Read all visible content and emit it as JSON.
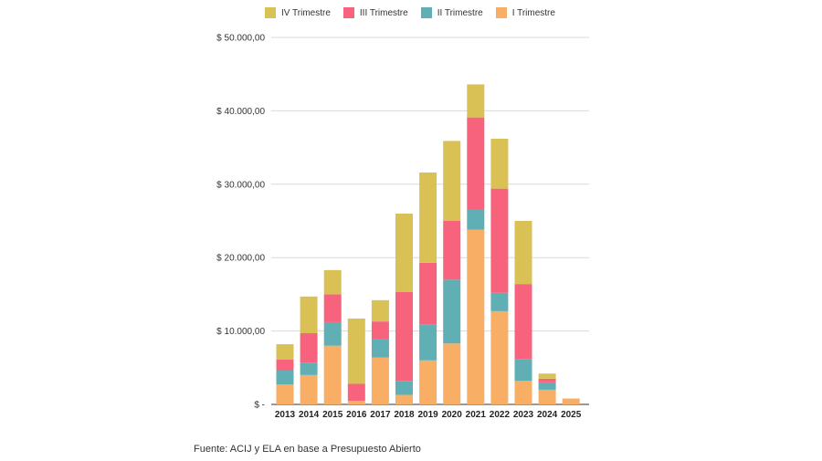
{
  "chart_data": {
    "type": "bar",
    "stacked": true,
    "title": "",
    "xlabel": "",
    "ylabel": "",
    "ylim": [
      0,
      50000
    ],
    "yticks": [
      {
        "value": 0,
        "label": "$ -"
      },
      {
        "value": 10000,
        "label": "$ 10.000,00"
      },
      {
        "value": 20000,
        "label": "$ 20.000,00"
      },
      {
        "value": 30000,
        "label": "$ 30.000,00"
      },
      {
        "value": 40000,
        "label": "$ 40.000,00"
      },
      {
        "value": 50000,
        "label": "$ 50.000,00"
      }
    ],
    "grid": true,
    "legend_position": "top",
    "categories": [
      "2013",
      "2014",
      "2015",
      "2016",
      "2017",
      "2018",
      "2019",
      "2020",
      "2021",
      "2022",
      "2023",
      "2024",
      "2025"
    ],
    "series": [
      {
        "name": "I Trimestre",
        "color": "#F9AE65",
        "values": [
          2700,
          4000,
          8000,
          500,
          6400,
          1300,
          6000,
          8300,
          23800,
          12700,
          3200,
          2000,
          800
        ]
      },
      {
        "name": "II Trimestre",
        "color": "#5FAFB5",
        "values": [
          1900,
          1700,
          3200,
          0,
          2500,
          1900,
          4900,
          8700,
          2700,
          2500,
          3000,
          1000,
          0
        ]
      },
      {
        "name": "III Trimestre",
        "color": "#F7637D",
        "values": [
          1500,
          4000,
          3800,
          2300,
          2400,
          12100,
          8400,
          8000,
          12600,
          14200,
          10200,
          500,
          0
        ]
      },
      {
        "name": "IV Trimestre",
        "color": "#D9C155",
        "values": [
          2100,
          5000,
          3300,
          8900,
          2900,
          10700,
          12300,
          10900,
          4500,
          6800,
          8600,
          700,
          0
        ]
      }
    ],
    "legend_order": [
      "IV Trimestre",
      "III Trimestre",
      "II Trimestre",
      "I Trimestre"
    ]
  },
  "source_note": "Fuente: ACIJ y ELA en base a Presupuesto Abierto"
}
